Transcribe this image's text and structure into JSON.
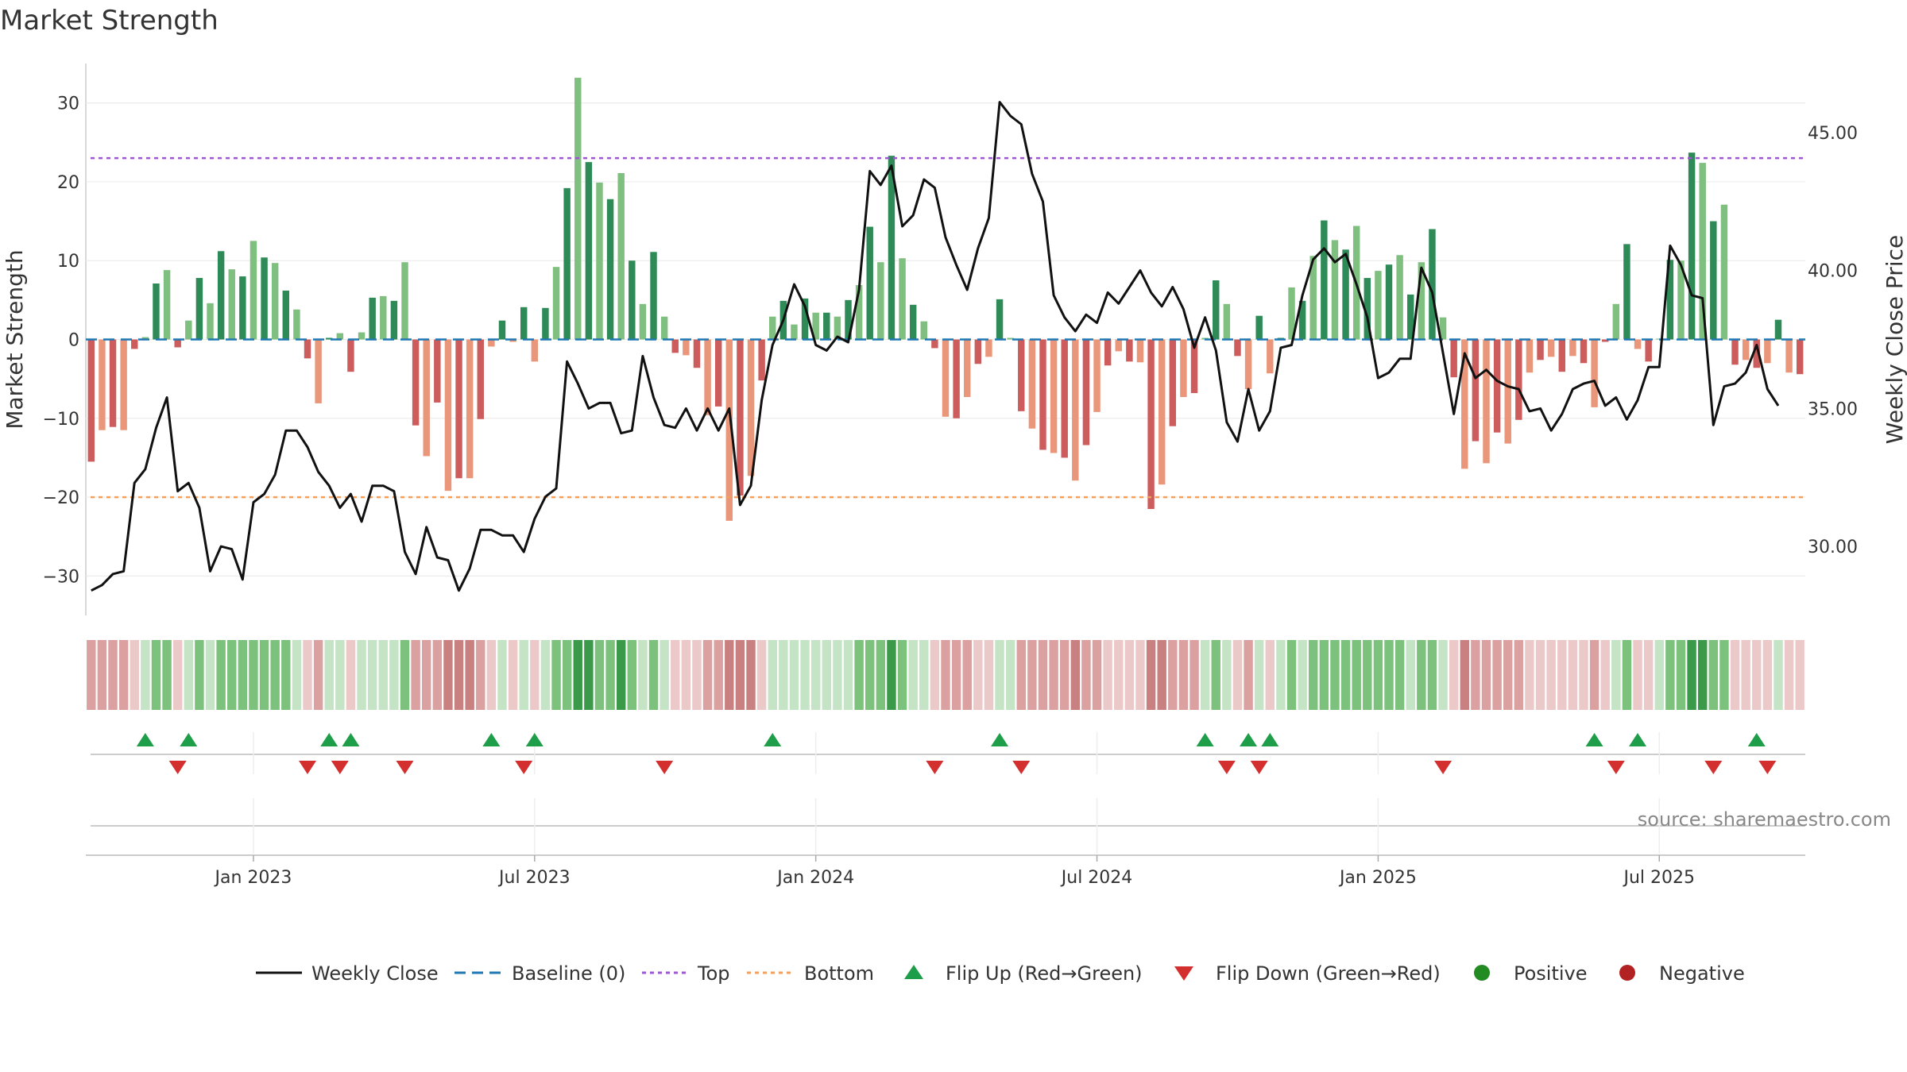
{
  "title": "Market Strength",
  "source": "source: sharemaestro.com",
  "chart_data": {
    "type": "bar+line",
    "title": "Market Strength",
    "ylabel_left": "Market Strength",
    "ylabel_right": "Weekly Close Price",
    "ylim_left": [
      -35,
      35
    ],
    "ylim_right": [
      27.5,
      47.5
    ],
    "left_ticks": [
      {
        "v": 30,
        "label": "30"
      },
      {
        "v": 20,
        "label": "20"
      },
      {
        "v": 10,
        "label": "10"
      },
      {
        "v": 0,
        "label": "0"
      },
      {
        "v": -10,
        "label": "−10"
      },
      {
        "v": -20,
        "label": "−20"
      },
      {
        "v": -30,
        "label": "−30"
      }
    ],
    "right_ticks": [
      {
        "v": 45,
        "label": "45.00"
      },
      {
        "v": 40,
        "label": "40.00"
      },
      {
        "v": 35,
        "label": "35.00"
      },
      {
        "v": 30,
        "label": "30.00"
      }
    ],
    "x_ticks": [
      {
        "week": 15,
        "label": "Jan 2023"
      },
      {
        "week": 41,
        "label": "Jul 2023"
      },
      {
        "week": 67,
        "label": "Jan 2024"
      },
      {
        "week": 93,
        "label": "Jul 2024"
      },
      {
        "week": 119,
        "label": "Jan 2025"
      },
      {
        "week": 145,
        "label": "Jul 2025"
      }
    ],
    "top_line": 23,
    "bottom_line": -20,
    "baseline": 0,
    "strength": [
      -15.5,
      -11.5,
      -11.1,
      -11.5,
      -1.2,
      0.3,
      7.1,
      8.8,
      -1.0,
      2.4,
      7.8,
      4.6,
      11.2,
      8.9,
      8.0,
      12.5,
      10.4,
      9.7,
      6.2,
      3.8,
      -2.4,
      -8.1,
      0.2,
      0.8,
      -4.1,
      0.9,
      5.3,
      5.5,
      4.9,
      9.8,
      -10.9,
      -14.8,
      -8.0,
      -19.2,
      -17.6,
      -17.6,
      -10.1,
      -0.9,
      2.4,
      -0.3,
      4.1,
      -2.8,
      4.0,
      9.2,
      19.2,
      33.2,
      22.5,
      19.9,
      17.8,
      21.1,
      10.0,
      4.5,
      11.1,
      2.9,
      -1.7,
      -2.0,
      -3.6,
      -9.6,
      -8.5,
      -23.0,
      -19.8,
      -17.3,
      -5.2,
      2.9,
      4.9,
      1.9,
      5.2,
      3.4,
      3.4,
      2.9,
      5.0,
      6.9,
      14.3,
      9.8,
      23.3,
      10.3,
      4.4,
      2.3,
      -1.1,
      -9.8,
      -10.0,
      -7.3,
      -3.1,
      -2.2,
      5.1,
      0.2,
      -9.1,
      -11.3,
      -14.0,
      -14.4,
      -15.0,
      -17.9,
      -13.4,
      -9.2,
      -3.3,
      -1.5,
      -2.8,
      -2.9,
      -21.5,
      -18.4,
      -11.0,
      -7.3,
      -6.8,
      0.2,
      7.5,
      4.5,
      -2.1,
      -6.3,
      3.0,
      -4.3,
      0.2,
      6.6,
      4.9,
      10.6,
      15.1,
      12.6,
      11.4,
      14.4,
      7.8,
      8.7,
      9.5,
      10.7,
      5.7,
      9.8,
      14.0,
      2.8,
      -4.8,
      -16.4,
      -12.9,
      -15.7,
      -11.8,
      -13.2,
      -10.2,
      -4.2,
      -2.6,
      -2.2,
      -4.1,
      -2.1,
      -3.0,
      -8.6,
      -0.3,
      4.5,
      12.1,
      -1.2,
      -2.8,
      0.1,
      10.1,
      10.0,
      23.7,
      22.4,
      15.0,
      17.1,
      -3.2,
      -2.6,
      -3.6,
      -3.0,
      2.5,
      -4.2,
      -4.4
    ],
    "weekly_close": [
      28.4,
      28.6,
      29.0,
      29.1,
      32.3,
      32.8,
      34.3,
      35.4,
      32.0,
      32.3,
      31.4,
      29.1,
      30.0,
      29.9,
      28.8,
      31.6,
      31.9,
      32.6,
      34.2,
      34.2,
      33.6,
      32.7,
      32.2,
      31.4,
      31.9,
      30.9,
      32.2,
      32.2,
      32.0,
      29.8,
      29.0,
      30.7,
      29.6,
      29.5,
      28.4,
      29.2,
      30.6,
      30.6,
      30.4,
      30.4,
      29.8,
      31.0,
      31.8,
      32.1,
      36.7,
      35.9,
      35.0,
      35.2,
      35.2,
      34.1,
      34.2,
      36.9,
      35.4,
      34.4,
      34.3,
      35.0,
      34.2,
      35.0,
      34.2,
      35.0,
      31.5,
      32.2,
      35.3,
      37.3,
      38.2,
      39.5,
      38.7,
      37.3,
      37.1,
      37.6,
      37.4,
      39.3,
      43.6,
      43.1,
      43.8,
      41.6,
      42.0,
      43.3,
      43.0,
      41.2,
      40.2,
      39.3,
      40.8,
      41.9,
      46.1,
      45.6,
      45.3,
      43.5,
      42.5,
      39.1,
      38.3,
      37.8,
      38.4,
      38.1,
      39.2,
      38.8,
      39.4,
      40.0,
      39.2,
      38.7,
      39.4,
      38.6,
      37.2,
      38.3,
      37.1,
      34.5,
      33.8,
      35.7,
      34.2,
      34.9,
      37.2,
      37.3,
      39.1,
      40.4,
      40.8,
      40.3,
      40.6,
      39.5,
      38.3,
      36.1,
      36.3,
      36.8,
      36.8,
      40.1,
      39.2,
      37.0,
      34.8,
      37.0,
      36.1,
      36.4,
      36.0,
      35.8,
      35.7,
      34.9,
      35.0,
      34.2,
      34.8,
      35.7,
      35.9,
      36.0,
      35.1,
      35.4,
      34.6,
      35.3,
      36.5,
      36.5,
      40.9,
      40.2,
      39.1,
      39.0,
      34.4,
      35.8,
      35.9,
      36.3,
      37.3,
      35.7,
      35.1
    ],
    "strip": {
      "colors": {
        "strong_positive": "#3a9a4a",
        "positive": "#7cc17c",
        "weak_positive": "#c5e3c5",
        "weak_negative": "#ecc9c9",
        "negative": "#dba0a0",
        "strong_negative": "#c98080"
      }
    },
    "flip_up_weeks": [
      5,
      9,
      22,
      24,
      37,
      41,
      63,
      84,
      103,
      107,
      109,
      139,
      143,
      154
    ],
    "flip_down_weeks": [
      8,
      20,
      23,
      29,
      40,
      53,
      78,
      86,
      105,
      108,
      125,
      141,
      150,
      155
    ],
    "legend": [
      "Weekly Close",
      "Baseline (0)",
      "Top",
      "Bottom",
      "Flip Up (Red→Green)",
      "Flip Down (Green→Red)",
      "Positive",
      "Negative"
    ],
    "colors": {
      "pos_dark": "#2e8b57",
      "pos_light": "#7fbf7f",
      "neg_dark": "#cd5c5c",
      "neg_light": "#e9967a",
      "close": "#111111",
      "baseline": "#1f77b4",
      "top": "#9b59d0",
      "bottom": "#f0a060",
      "flip_up": "#1e9e48",
      "flip_down": "#d32f2f",
      "positive_dot": "#228b22",
      "negative_dot": "#b22222"
    }
  }
}
